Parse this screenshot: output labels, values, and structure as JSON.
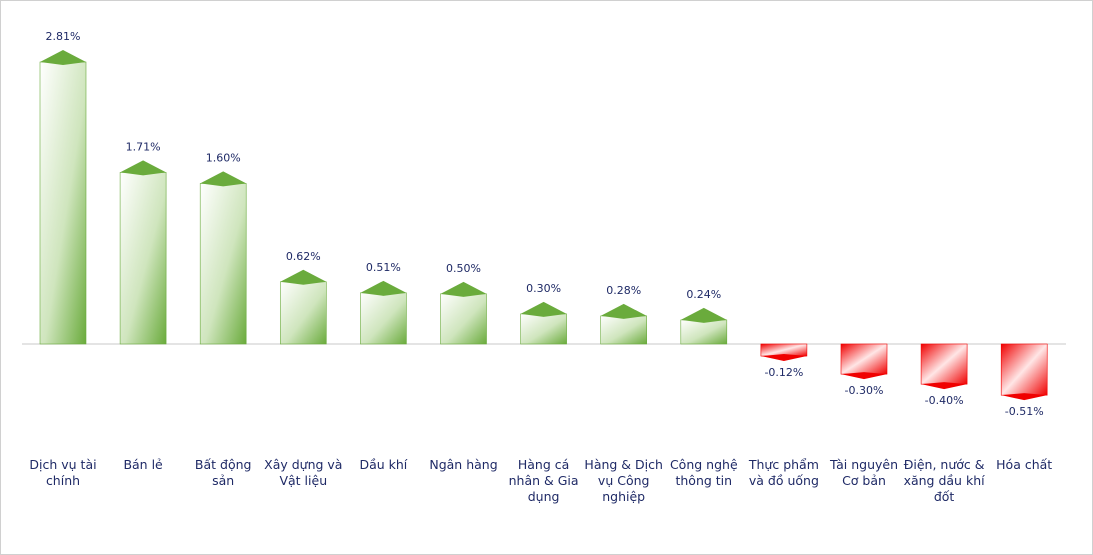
{
  "chart_data": {
    "type": "bar",
    "categories": [
      "Dịch vụ tài chính",
      "Bán lẻ",
      "Bất động sản",
      "Xây dựng và Vật liệu",
      "Dầu khí",
      "Ngân hàng",
      "Hàng cá nhân & Gia dụng",
      "Hàng & Dịch vụ Công nghiệp",
      "Công nghệ thông tin",
      "Thực phẩm và đồ uống",
      "Tài nguyên Cơ bản",
      "Điện, nước & xăng dầu khí đốt",
      "Hóa chất"
    ],
    "values": [
      2.81,
      1.71,
      1.6,
      0.62,
      0.51,
      0.5,
      0.3,
      0.28,
      0.24,
      -0.12,
      -0.3,
      -0.4,
      -0.51
    ],
    "value_labels": [
      "2.81%",
      "1.71%",
      "1.60%",
      "0.62%",
      "0.51%",
      "0.50%",
      "0.30%",
      "0.28%",
      "0.24%",
      "-0.12%",
      "-0.30%",
      "-0.40%",
      "-0.51%"
    ],
    "colors": {
      "positive": "#6aab3c",
      "negative": "#f00000"
    }
  }
}
